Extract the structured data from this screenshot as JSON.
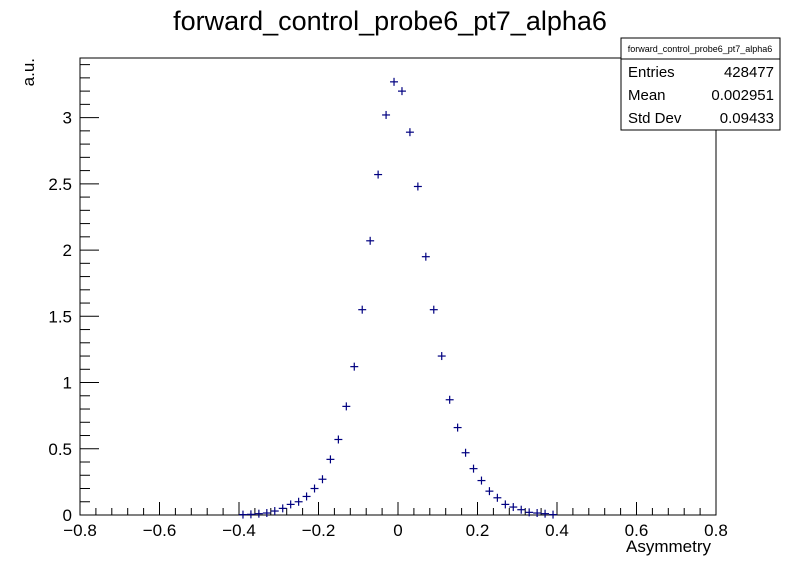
{
  "title": "forward_control_probe6_pt7_alpha6",
  "stats": {
    "title": "forward_control_probe6_pt7_alpha6",
    "rows": [
      {
        "label": "Entries",
        "value": "428477"
      },
      {
        "label": "Mean",
        "value": "0.002951"
      },
      {
        "label": "Std Dev",
        "value": "0.09433"
      }
    ]
  },
  "colors": {
    "marker": "#000080",
    "axis": "#000000"
  },
  "chart_data": {
    "type": "scatter",
    "title": "forward_control_probe6_pt7_alpha6",
    "xlabel": "Asymmetry",
    "ylabel": "a.u.",
    "xlim": [
      -0.8,
      0.8
    ],
    "ylim": [
      0,
      3.45
    ],
    "bin_width": 0.02,
    "grid": false,
    "legend": "top-right stats box",
    "x_ticks": [
      "−0.8",
      "−0.6",
      "−0.4",
      "−0.2",
      "0",
      "0.2",
      "0.4",
      "0.6",
      "0.8"
    ],
    "y_ticks": [
      "0",
      "0.5",
      "1",
      "1.5",
      "2",
      "2.5",
      "3"
    ],
    "x_tick_values": [
      -0.8,
      -0.6,
      -0.4,
      -0.2,
      0,
      0.2,
      0.4,
      0.6,
      0.8
    ],
    "y_tick_values": [
      0,
      0.5,
      1,
      1.5,
      2,
      2.5,
      3
    ],
    "series": [
      {
        "x": [
          -0.39,
          -0.37,
          -0.35,
          -0.33,
          -0.31,
          -0.29,
          -0.27,
          -0.25,
          -0.23,
          -0.21,
          -0.19,
          -0.17,
          -0.15,
          -0.13,
          -0.11,
          -0.09,
          -0.07,
          -0.05,
          -0.03,
          -0.01,
          0.01,
          0.03,
          0.05,
          0.07,
          0.09,
          0.11,
          0.13,
          0.15,
          0.17,
          0.19,
          0.21,
          0.23,
          0.25,
          0.27,
          0.29,
          0.31,
          0.33,
          0.35,
          0.37,
          0.39
        ],
        "values": [
          0.003,
          0.005,
          0.01,
          0.015,
          0.03,
          0.05,
          0.08,
          0.1,
          0.14,
          0.2,
          0.27,
          0.42,
          0.57,
          0.82,
          1.12,
          1.55,
          2.07,
          2.57,
          3.02,
          3.27,
          3.2,
          2.89,
          2.48,
          1.95,
          1.55,
          1.2,
          0.87,
          0.66,
          0.47,
          0.35,
          0.26,
          0.18,
          0.13,
          0.08,
          0.06,
          0.04,
          0.02,
          0.015,
          0.01,
          0.003
        ]
      }
    ]
  }
}
